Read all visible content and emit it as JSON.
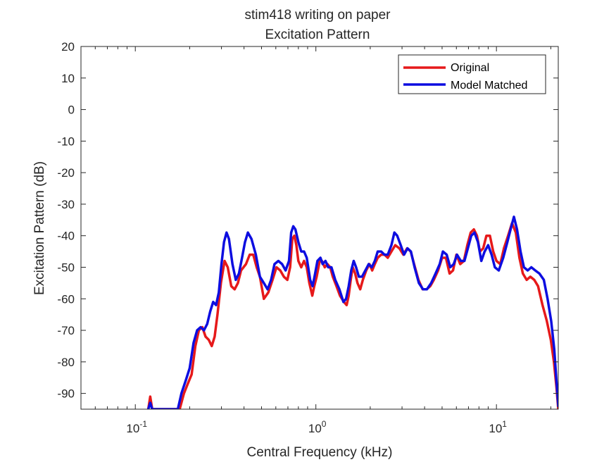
{
  "chart_data": {
    "type": "line",
    "title": "stim418 writing on paper",
    "subtitle": "Excitation Pattern",
    "xlabel": "Central Frequency (kHz)",
    "ylabel": "Excitation Pattern (dB)",
    "xscale": "log",
    "xlim": [
      0.05,
      22
    ],
    "ylim": [
      -95,
      20
    ],
    "yticks": [
      20,
      10,
      0,
      -10,
      -20,
      -30,
      -40,
      -50,
      -60,
      -70,
      -80,
      -90
    ],
    "xticks": [
      {
        "value": 0.1,
        "base": "10",
        "exp": "-1"
      },
      {
        "value": 1,
        "base": "10",
        "exp": "0"
      },
      {
        "value": 10,
        "base": "10",
        "exp": "1"
      }
    ],
    "grid": false,
    "legend_position": "top-right",
    "series": [
      {
        "name": "Original",
        "color": "#e6191a",
        "points": [
          [
            0.118,
            -95
          ],
          [
            0.121,
            -91
          ],
          [
            0.124,
            -95
          ],
          [
            0.176,
            -95
          ],
          [
            0.186,
            -90
          ],
          [
            0.195,
            -87
          ],
          [
            0.205,
            -84
          ],
          [
            0.215,
            -75
          ],
          [
            0.225,
            -70
          ],
          [
            0.235,
            -69
          ],
          [
            0.245,
            -72
          ],
          [
            0.255,
            -73
          ],
          [
            0.265,
            -75
          ],
          [
            0.275,
            -72
          ],
          [
            0.285,
            -65
          ],
          [
            0.298,
            -55
          ],
          [
            0.312,
            -48
          ],
          [
            0.325,
            -50
          ],
          [
            0.34,
            -56
          ],
          [
            0.355,
            -57
          ],
          [
            0.37,
            -55
          ],
          [
            0.385,
            -51
          ],
          [
            0.41,
            -49
          ],
          [
            0.43,
            -46
          ],
          [
            0.45,
            -46
          ],
          [
            0.47,
            -50
          ],
          [
            0.49,
            -53
          ],
          [
            0.515,
            -60
          ],
          [
            0.545,
            -58
          ],
          [
            0.575,
            -54
          ],
          [
            0.605,
            -50
          ],
          [
            0.635,
            -51
          ],
          [
            0.665,
            -53
          ],
          [
            0.695,
            -54
          ],
          [
            0.72,
            -50
          ],
          [
            0.74,
            -41
          ],
          [
            0.76,
            -40
          ],
          [
            0.78,
            -43
          ],
          [
            0.8,
            -48
          ],
          [
            0.83,
            -50
          ],
          [
            0.86,
            -48
          ],
          [
            0.89,
            -50
          ],
          [
            0.92,
            -55
          ],
          [
            0.955,
            -59
          ],
          [
            0.98,
            -56
          ],
          [
            1.01,
            -53
          ],
          [
            1.05,
            -48
          ],
          [
            1.08,
            -48
          ],
          [
            1.12,
            -50
          ],
          [
            1.16,
            -49
          ],
          [
            1.2,
            -50
          ],
          [
            1.24,
            -53
          ],
          [
            1.3,
            -56
          ],
          [
            1.36,
            -59
          ],
          [
            1.43,
            -61
          ],
          [
            1.48,
            -62
          ],
          [
            1.52,
            -59
          ],
          [
            1.56,
            -54
          ],
          [
            1.6,
            -50
          ],
          [
            1.65,
            -52
          ],
          [
            1.7,
            -55
          ],
          [
            1.76,
            -57
          ],
          [
            1.82,
            -54
          ],
          [
            1.9,
            -51
          ],
          [
            1.98,
            -49
          ],
          [
            2.05,
            -51
          ],
          [
            2.12,
            -49
          ],
          [
            2.2,
            -47
          ],
          [
            2.3,
            -46
          ],
          [
            2.4,
            -46
          ],
          [
            2.5,
            -47
          ],
          [
            2.62,
            -45
          ],
          [
            2.75,
            -43
          ],
          [
            2.9,
            -44
          ],
          [
            3.05,
            -46
          ],
          [
            3.2,
            -44
          ],
          [
            3.35,
            -45
          ],
          [
            3.5,
            -49
          ],
          [
            3.7,
            -54
          ],
          [
            3.9,
            -57
          ],
          [
            4.1,
            -57
          ],
          [
            4.3,
            -56
          ],
          [
            4.5,
            -54
          ],
          [
            4.75,
            -51
          ],
          [
            5.0,
            -47
          ],
          [
            5.25,
            -47
          ],
          [
            5.5,
            -52
          ],
          [
            5.75,
            -51
          ],
          [
            6.0,
            -46
          ],
          [
            6.3,
            -49
          ],
          [
            6.6,
            -48
          ],
          [
            6.9,
            -43
          ],
          [
            7.2,
            -39
          ],
          [
            7.5,
            -38
          ],
          [
            7.8,
            -40
          ],
          [
            8.1,
            -45
          ],
          [
            8.45,
            -44
          ],
          [
            8.8,
            -40
          ],
          [
            9.2,
            -40
          ],
          [
            9.6,
            -45
          ],
          [
            10.0,
            -48
          ],
          [
            10.5,
            -49
          ],
          [
            11.0,
            -44
          ],
          [
            11.6,
            -40
          ],
          [
            12.2,
            -36
          ],
          [
            12.8,
            -39
          ],
          [
            13.4,
            -47
          ],
          [
            14.0,
            -52
          ],
          [
            14.7,
            -54
          ],
          [
            15.4,
            -53
          ],
          [
            16.2,
            -54
          ],
          [
            17.0,
            -56
          ],
          [
            18.0,
            -62
          ],
          [
            19.0,
            -67
          ],
          [
            20.0,
            -73
          ],
          [
            20.8,
            -80
          ],
          [
            21.5,
            -88
          ],
          [
            22.0,
            -95
          ]
        ]
      },
      {
        "name": "Model Matched",
        "color": "#0d0de0",
        "points": [
          [
            0.118,
            -95
          ],
          [
            0.121,
            -93
          ],
          [
            0.124,
            -95
          ],
          [
            0.172,
            -95
          ],
          [
            0.18,
            -90
          ],
          [
            0.19,
            -86
          ],
          [
            0.2,
            -82
          ],
          [
            0.21,
            -74
          ],
          [
            0.22,
            -70
          ],
          [
            0.23,
            -69
          ],
          [
            0.24,
            -70
          ],
          [
            0.25,
            -68
          ],
          [
            0.26,
            -64
          ],
          [
            0.27,
            -61
          ],
          [
            0.28,
            -62
          ],
          [
            0.29,
            -58
          ],
          [
            0.3,
            -49
          ],
          [
            0.31,
            -42
          ],
          [
            0.32,
            -39
          ],
          [
            0.33,
            -41
          ],
          [
            0.345,
            -49
          ],
          [
            0.36,
            -54
          ],
          [
            0.375,
            -52
          ],
          [
            0.39,
            -47
          ],
          [
            0.405,
            -42
          ],
          [
            0.42,
            -39
          ],
          [
            0.44,
            -41
          ],
          [
            0.465,
            -46
          ],
          [
            0.49,
            -53
          ],
          [
            0.515,
            -55
          ],
          [
            0.54,
            -57
          ],
          [
            0.565,
            -54
          ],
          [
            0.59,
            -49
          ],
          [
            0.62,
            -48
          ],
          [
            0.65,
            -49
          ],
          [
            0.68,
            -51
          ],
          [
            0.71,
            -48
          ],
          [
            0.73,
            -39
          ],
          [
            0.75,
            -37
          ],
          [
            0.77,
            -38
          ],
          [
            0.8,
            -42
          ],
          [
            0.83,
            -45
          ],
          [
            0.86,
            -45
          ],
          [
            0.89,
            -47
          ],
          [
            0.93,
            -54
          ],
          [
            0.96,
            -56
          ],
          [
            0.99,
            -52
          ],
          [
            1.02,
            -48
          ],
          [
            1.06,
            -47
          ],
          [
            1.09,
            -49
          ],
          [
            1.13,
            -48
          ],
          [
            1.17,
            -50
          ],
          [
            1.22,
            -50
          ],
          [
            1.28,
            -54
          ],
          [
            1.35,
            -57
          ],
          [
            1.42,
            -61
          ],
          [
            1.47,
            -60
          ],
          [
            1.52,
            -56
          ],
          [
            1.57,
            -51
          ],
          [
            1.62,
            -48
          ],
          [
            1.67,
            -50
          ],
          [
            1.73,
            -53
          ],
          [
            1.8,
            -53
          ],
          [
            1.88,
            -51
          ],
          [
            1.96,
            -49
          ],
          [
            2.04,
            -50
          ],
          [
            2.12,
            -48
          ],
          [
            2.2,
            -45
          ],
          [
            2.3,
            -45
          ],
          [
            2.4,
            -46
          ],
          [
            2.5,
            -46
          ],
          [
            2.62,
            -43
          ],
          [
            2.72,
            -39
          ],
          [
            2.82,
            -40
          ],
          [
            2.95,
            -43
          ],
          [
            3.08,
            -46
          ],
          [
            3.22,
            -44
          ],
          [
            3.36,
            -45
          ],
          [
            3.52,
            -50
          ],
          [
            3.72,
            -55
          ],
          [
            3.92,
            -57
          ],
          [
            4.12,
            -57
          ],
          [
            4.35,
            -55
          ],
          [
            4.6,
            -52
          ],
          [
            4.85,
            -49
          ],
          [
            5.05,
            -45
          ],
          [
            5.3,
            -46
          ],
          [
            5.55,
            -50
          ],
          [
            5.8,
            -49
          ],
          [
            6.05,
            -46
          ],
          [
            6.35,
            -48
          ],
          [
            6.65,
            -48
          ],
          [
            6.95,
            -44
          ],
          [
            7.25,
            -40
          ],
          [
            7.55,
            -39
          ],
          [
            7.9,
            -42
          ],
          [
            8.25,
            -48
          ],
          [
            8.6,
            -45
          ],
          [
            9.0,
            -43
          ],
          [
            9.4,
            -46
          ],
          [
            9.8,
            -50
          ],
          [
            10.3,
            -51
          ],
          [
            10.9,
            -47
          ],
          [
            11.5,
            -42
          ],
          [
            12.1,
            -37
          ],
          [
            12.5,
            -34
          ],
          [
            13.0,
            -38
          ],
          [
            13.6,
            -45
          ],
          [
            14.2,
            -50
          ],
          [
            14.9,
            -51
          ],
          [
            15.6,
            -50
          ],
          [
            16.4,
            -51
          ],
          [
            17.3,
            -52
          ],
          [
            18.3,
            -54
          ],
          [
            19.2,
            -60
          ],
          [
            20.1,
            -67
          ],
          [
            20.9,
            -76
          ],
          [
            21.5,
            -86
          ],
          [
            22.0,
            -94
          ]
        ]
      }
    ]
  }
}
